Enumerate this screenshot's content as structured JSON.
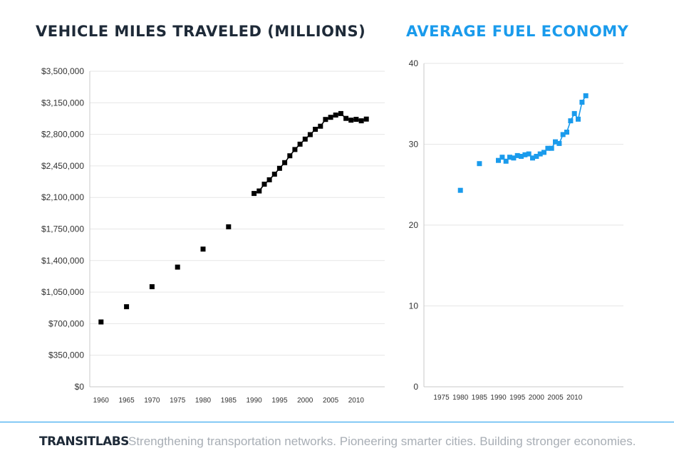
{
  "titles": {
    "left": "VEHICLE MILES TRAVELED (MILLIONS)",
    "right": "AVERAGE FUEL ECONOMY"
  },
  "colors": {
    "left_series": "#000000",
    "right_series": "#1a9bec",
    "grid": "#e6e6e6",
    "footer_line": "#1a9bec"
  },
  "footer": {
    "brand": "TRANSITLABS",
    "tagline": "Strengthening transportation networks. Pioneering smarter cities. Building stronger economies."
  },
  "chart_data": [
    {
      "type": "scatter",
      "title": "VEHICLE MILES TRAVELED (MILLIONS)",
      "xlim": [
        1957.8,
        2015.6
      ],
      "ylim": [
        0,
        3500000
      ],
      "y_ticks": [
        0,
        350000,
        700000,
        1050000,
        1400000,
        1750000,
        2100000,
        2450000,
        2800000,
        3150000,
        3500000
      ],
      "y_tick_labels": [
        "$0",
        "$350,000",
        "$700,000",
        "$1,050,000",
        "$1,400,000",
        "$1,750,000",
        "$2,100,000",
        "$2,450,000",
        "$2,800,000",
        "$3,150,000",
        "$3,500,000"
      ],
      "x_ticks": [
        1960,
        1965,
        1970,
        1975,
        1980,
        1985,
        1990,
        1995,
        2000,
        2005,
        2010
      ],
      "x_tick_labels": [
        "1960",
        "1965",
        "1970",
        "1975",
        "1980",
        "1985",
        "1990",
        "1995",
        "2000",
        "2005",
        "2010"
      ],
      "grid": "horizontal",
      "series": [
        {
          "color": "#000000",
          "marker": "square",
          "points": [
            {
              "x": 1960,
              "y": 718800,
              "line": false
            },
            {
              "x": 1965,
              "y": 887800,
              "line": false
            },
            {
              "x": 1970,
              "y": 1109700,
              "line": false
            },
            {
              "x": 1975,
              "y": 1327700,
              "line": false
            },
            {
              "x": 1980,
              "y": 1527300,
              "line": false
            },
            {
              "x": 1985,
              "y": 1774800,
              "line": false
            },
            {
              "x": 1990,
              "y": 2144000,
              "line": true
            },
            {
              "x": 1991,
              "y": 2172000,
              "line": true
            },
            {
              "x": 1992,
              "y": 2247000,
              "line": true
            },
            {
              "x": 1993,
              "y": 2296000,
              "line": true
            },
            {
              "x": 1994,
              "y": 2358000,
              "line": true
            },
            {
              "x": 1995,
              "y": 2423000,
              "line": true
            },
            {
              "x": 1996,
              "y": 2486000,
              "line": true
            },
            {
              "x": 1997,
              "y": 2562000,
              "line": true
            },
            {
              "x": 1998,
              "y": 2632000,
              "line": true
            },
            {
              "x": 1999,
              "y": 2691000,
              "line": true
            },
            {
              "x": 2000,
              "y": 2747000,
              "line": true
            },
            {
              "x": 2001,
              "y": 2797000,
              "line": true
            },
            {
              "x": 2002,
              "y": 2856000,
              "line": true
            },
            {
              "x": 2003,
              "y": 2890000,
              "line": true
            },
            {
              "x": 2004,
              "y": 2965000,
              "line": true
            },
            {
              "x": 2005,
              "y": 2989000,
              "line": true
            },
            {
              "x": 2006,
              "y": 3014000,
              "line": true
            },
            {
              "x": 2007,
              "y": 3031000,
              "line": true
            },
            {
              "x": 2008,
              "y": 2977000,
              "line": true
            },
            {
              "x": 2009,
              "y": 2957000,
              "line": true
            },
            {
              "x": 2010,
              "y": 2967000,
              "line": true
            },
            {
              "x": 2011,
              "y": 2950000,
              "line": true
            },
            {
              "x": 2012,
              "y": 2969000,
              "line": true
            }
          ]
        }
      ]
    },
    {
      "type": "scatter",
      "title": "AVERAGE FUEL ECONOMY",
      "xlim": [
        1970.4,
        2022.9
      ],
      "ylim": [
        0,
        40
      ],
      "y_ticks": [
        0,
        10,
        20,
        30,
        40
      ],
      "y_tick_labels": [
        "0",
        "10",
        "20",
        "30",
        "40"
      ],
      "x_ticks": [
        1975,
        1980,
        1985,
        1990,
        1995,
        2000,
        2005,
        2010
      ],
      "x_tick_labels": [
        "1975",
        "1980",
        "1985",
        "1990",
        "1995",
        "2000",
        "2005",
        "2010"
      ],
      "grid": "horizontal",
      "series": [
        {
          "color": "#1a9bec",
          "marker": "square",
          "points": [
            {
              "x": 1980,
              "y": 24.3,
              "line": false
            },
            {
              "x": 1985,
              "y": 27.6,
              "line": false
            },
            {
              "x": 1990,
              "y": 28.0,
              "line": true
            },
            {
              "x": 1991,
              "y": 28.4,
              "line": true
            },
            {
              "x": 1992,
              "y": 27.9,
              "line": true
            },
            {
              "x": 1993,
              "y": 28.4,
              "line": true
            },
            {
              "x": 1994,
              "y": 28.3,
              "line": true
            },
            {
              "x": 1995,
              "y": 28.6,
              "line": true
            },
            {
              "x": 1996,
              "y": 28.5,
              "line": true
            },
            {
              "x": 1997,
              "y": 28.7,
              "line": true
            },
            {
              "x": 1998,
              "y": 28.8,
              "line": true
            },
            {
              "x": 1999,
              "y": 28.3,
              "line": true
            },
            {
              "x": 2000,
              "y": 28.5,
              "line": true
            },
            {
              "x": 2001,
              "y": 28.8,
              "line": true
            },
            {
              "x": 2002,
              "y": 29.0,
              "line": true
            },
            {
              "x": 2003,
              "y": 29.5,
              "line": true
            },
            {
              "x": 2004,
              "y": 29.5,
              "line": true
            },
            {
              "x": 2005,
              "y": 30.3,
              "line": true
            },
            {
              "x": 2006,
              "y": 30.1,
              "line": true
            },
            {
              "x": 2007,
              "y": 31.2,
              "line": true
            },
            {
              "x": 2008,
              "y": 31.5,
              "line": true
            },
            {
              "x": 2009,
              "y": 32.9,
              "line": true
            },
            {
              "x": 2010,
              "y": 33.8,
              "line": true
            },
            {
              "x": 2011,
              "y": 33.1,
              "line": true
            },
            {
              "x": 2012,
              "y": 35.2,
              "line": true
            },
            {
              "x": 2013,
              "y": 36.0,
              "line": true
            }
          ]
        }
      ]
    }
  ]
}
